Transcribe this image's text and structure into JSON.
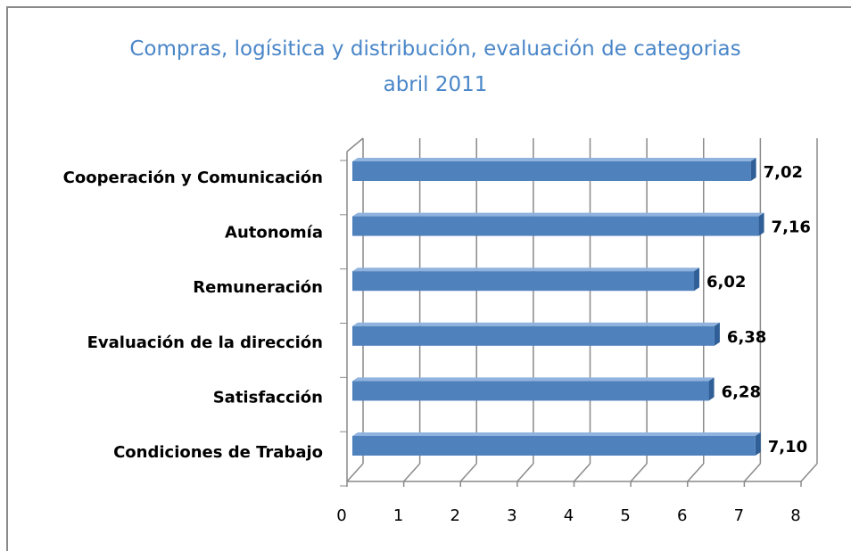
{
  "chart_data": {
    "type": "bar",
    "orientation": "horizontal",
    "title": "Compras, logísitica y distribución, evaluación de categorias abril 2011",
    "categories": [
      "Cooperación y Comunicación",
      "Autonomía",
      "Remuneración",
      "Evaluación de la dirección",
      "Satisfacción",
      "Condiciones de Trabajo"
    ],
    "values": [
      7.02,
      7.16,
      6.02,
      6.38,
      6.28,
      7.1
    ],
    "value_labels": [
      "7,02",
      "7,16",
      "6,02",
      "6,38",
      "6,28",
      "7,10"
    ],
    "color": "#4f81bd",
    "xlim": [
      0,
      8
    ],
    "xticks": [
      0,
      1,
      2,
      3,
      4,
      5,
      6,
      7,
      8
    ],
    "grid": true
  }
}
